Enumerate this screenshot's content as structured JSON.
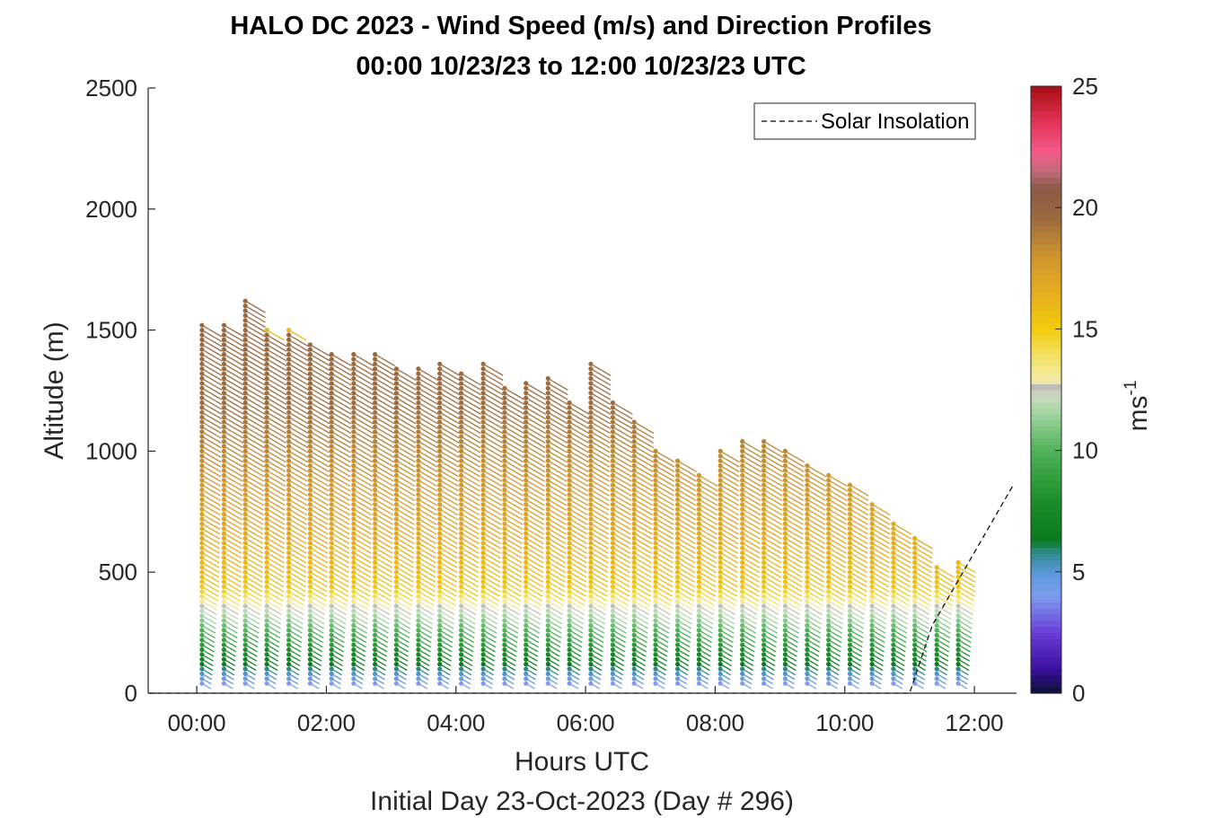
{
  "chart_data": {
    "type": "wind-barb-profile",
    "title": "HALO DC 2023 - Wind Speed (m/s) and Direction Profiles",
    "subtitle": "00:00 10/23/23 to 12:00 10/23/23  UTC",
    "xlabel": "Hours UTC",
    "xlabel2": "Initial Day 23-Oct-2023 (Day # 296)",
    "ylabel": "Altitude (m)",
    "xlim": [
      -0.75,
      12.65
    ],
    "ylim": [
      0,
      2500
    ],
    "xticks": [
      0,
      2,
      4,
      6,
      8,
      10,
      12
    ],
    "xtick_labels": [
      "00:00",
      "02:00",
      "04:00",
      "06:00",
      "08:00",
      "10:00",
      "12:00"
    ],
    "yticks": [
      0,
      500,
      1000,
      1500,
      2000,
      2500
    ],
    "ytick_labels": [
      "0",
      "500",
      "1000",
      "1500",
      "2000",
      "2500"
    ],
    "colorbar": {
      "label": "ms",
      "label_exponent": "-1",
      "range": [
        0,
        25
      ],
      "ticks": [
        0,
        5,
        10,
        15,
        20,
        25
      ],
      "tick_labels": [
        "0",
        "5",
        "10",
        "15",
        "20",
        "25"
      ]
    },
    "legend": {
      "entries": [
        "Solar Insolation"
      ],
      "placement": "top-right"
    },
    "profiles": [
      {
        "t": 0.08,
        "top": 1530
      },
      {
        "t": 0.42,
        "top": 1530
      },
      {
        "t": 0.75,
        "top": 1630
      },
      {
        "t": 1.08,
        "top": 1500
      },
      {
        "t": 1.42,
        "top": 1500
      },
      {
        "t": 1.75,
        "top": 1450
      },
      {
        "t": 2.08,
        "top": 1410
      },
      {
        "t": 2.42,
        "top": 1410
      },
      {
        "t": 2.75,
        "top": 1410
      },
      {
        "t": 3.08,
        "top": 1340
      },
      {
        "t": 3.42,
        "top": 1340
      },
      {
        "t": 3.75,
        "top": 1370
      },
      {
        "t": 4.08,
        "top": 1330
      },
      {
        "t": 4.42,
        "top": 1370
      },
      {
        "t": 4.75,
        "top": 1260
      },
      {
        "t": 5.08,
        "top": 1290
      },
      {
        "t": 5.42,
        "top": 1300
      },
      {
        "t": 5.75,
        "top": 1210
      },
      {
        "t": 6.08,
        "top": 1370
      },
      {
        "t": 6.42,
        "top": 1210
      },
      {
        "t": 6.75,
        "top": 1130
      },
      {
        "t": 7.08,
        "top": 1000
      },
      {
        "t": 7.42,
        "top": 960
      },
      {
        "t": 7.75,
        "top": 900
      },
      {
        "t": 8.08,
        "top": 1000
      },
      {
        "t": 8.42,
        "top": 1050
      },
      {
        "t": 8.75,
        "top": 1050
      },
      {
        "t": 9.08,
        "top": 1000
      },
      {
        "t": 9.42,
        "top": 950
      },
      {
        "t": 9.75,
        "top": 910
      },
      {
        "t": 10.08,
        "top": 870
      },
      {
        "t": 10.42,
        "top": 790
      },
      {
        "t": 10.75,
        "top": 700
      },
      {
        "t": 11.08,
        "top": 650
      },
      {
        "t": 11.42,
        "top": 520
      },
      {
        "t": 11.75,
        "top": 550
      }
    ],
    "speed_profile": {
      "altitude": [
        0,
        60,
        120,
        200,
        300,
        360,
        400,
        450,
        800,
        1200,
        1700
      ],
      "speed": [
        3,
        4.5,
        6.5,
        8.5,
        11,
        12.5,
        14,
        15.5,
        17.5,
        19.5,
        20
      ]
    },
    "solar_insolation": {
      "x": [
        -0.75,
        11.0,
        11.35,
        12.6
      ],
      "y": [
        0,
        0,
        280,
        860
      ]
    },
    "colors": {
      "axis": "#262626",
      "solar_line": "#000000"
    }
  }
}
